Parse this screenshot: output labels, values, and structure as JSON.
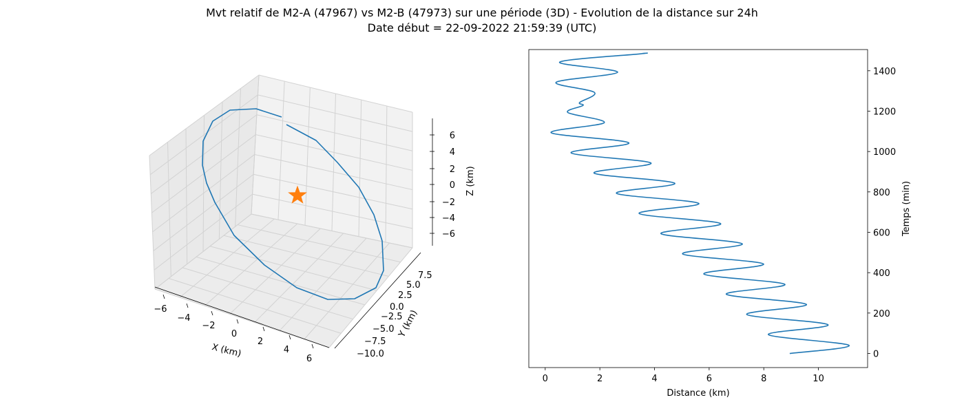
{
  "title": "Mvt relatif de M2-A (47967) vs M2-B (47973) sur une période (3D) - Evolution de la distance sur 24h",
  "subtitle": "Date début = 22-09-2022 21:59:39 (UTC)",
  "colors": {
    "series": "#1f77b4",
    "marker": "#ff7f0e",
    "pane": "#f2f2f2",
    "grid": "#d2d2d2"
  },
  "chart_data": [
    {
      "type": "line3d",
      "xlabel": "X (km)",
      "ylabel": "Y (km)",
      "zlabel": "Z (km)",
      "xticks": [
        "−6",
        "−4",
        "−2",
        "0",
        "2",
        "4",
        "6"
      ],
      "yticks": [
        "−10.0",
        "−7.5",
        "−5.0",
        "−2.5",
        "0.0",
        "2.5",
        "5.0",
        "7.5"
      ],
      "zticks": [
        "−6",
        "−4",
        "−2",
        "0",
        "2",
        "4",
        "6"
      ],
      "marker": {
        "shape": "star",
        "x": 0,
        "y": 0,
        "z": 0
      },
      "series": [
        {
          "shape": "closed relative orbit ellipse around the origin"
        }
      ]
    },
    {
      "type": "line",
      "xlabel": "Distance (km)",
      "ylabel": "Temps (min)",
      "xlim": [
        -0.6,
        11.8
      ],
      "ylim": [
        -70,
        1505
      ],
      "xticks": [
        "0",
        "2",
        "4",
        "6",
        "8",
        "10"
      ],
      "yticks": [
        "0",
        "200",
        "400",
        "600",
        "800",
        "1000",
        "1200",
        "1400"
      ],
      "series": [
        {
          "points": [
            [
              8.95,
              0
            ],
            [
              11.12,
              40
            ],
            [
              8.17,
              93
            ],
            [
              10.35,
              142
            ],
            [
              7.38,
              193
            ],
            [
              9.56,
              243
            ],
            [
              6.63,
              293
            ],
            [
              8.77,
              342
            ],
            [
              5.81,
              393
            ],
            [
              7.99,
              443
            ],
            [
              5.03,
              493
            ],
            [
              7.21,
              543
            ],
            [
              4.24,
              593
            ],
            [
              6.42,
              643
            ],
            [
              3.44,
              693
            ],
            [
              5.62,
              743
            ],
            [
              2.61,
              793
            ],
            [
              4.74,
              843
            ],
            [
              1.79,
              893
            ],
            [
              3.87,
              943
            ],
            [
              0.95,
              993
            ],
            [
              3.06,
              1043
            ],
            [
              0.22,
              1093
            ],
            [
              2.16,
              1143
            ],
            [
              0.83,
              1193
            ],
            [
              1.38,
              1228
            ],
            [
              1.26,
              1243
            ],
            [
              1.8,
              1293
            ],
            [
              0.4,
              1343
            ],
            [
              2.65,
              1393
            ],
            [
              0.53,
              1443
            ],
            [
              3.5,
              1484
            ],
            [
              3.56,
              1486
            ]
          ]
        }
      ]
    }
  ]
}
